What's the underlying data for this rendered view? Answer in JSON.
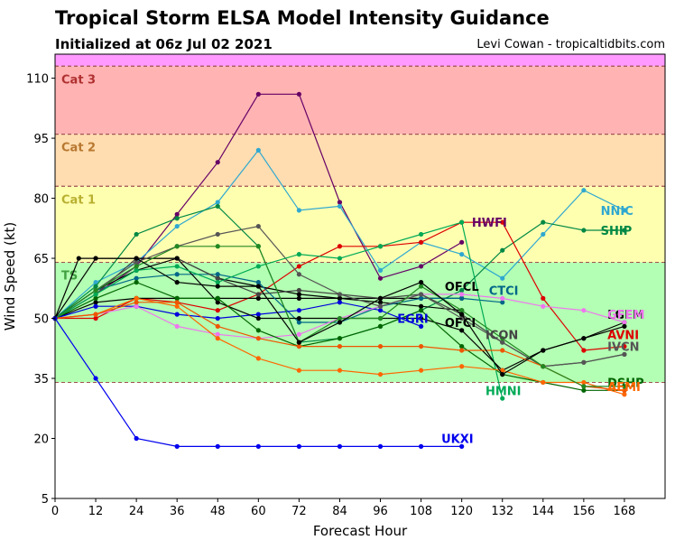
{
  "chart_data": {
    "type": "line",
    "title": "Tropical Storm ELSA Model Intensity Guidance",
    "subtitle": "Initialized at 06z Jul 02 2021",
    "credit": "Levi Cowan - tropicaltidbits.com",
    "xlabel": "Forecast Hour",
    "ylabel": "Wind Speed (kt)",
    "xlim": [
      0,
      180
    ],
    "ylim": [
      5,
      116
    ],
    "xticks": [
      0,
      12,
      24,
      36,
      48,
      60,
      72,
      84,
      96,
      108,
      120,
      132,
      144,
      156,
      168
    ],
    "yticks": [
      5,
      20,
      35,
      50,
      65,
      80,
      95,
      110
    ],
    "grid": false,
    "bands": [
      {
        "label": "",
        "from": 113,
        "to": 116,
        "color": "#ff99ff"
      },
      {
        "label": "Cat 3",
        "from": 96,
        "to": 113,
        "color": "#ffb3b3",
        "label_color": "#b03030"
      },
      {
        "label": "Cat 2",
        "from": 83,
        "to": 96,
        "color": "#ffddb0",
        "label_color": "#b87830"
      },
      {
        "label": "Cat 1",
        "from": 64,
        "to": 83,
        "color": "#ffffb0",
        "label_color": "#b8b030"
      },
      {
        "label": "TS",
        "from": 34,
        "to": 64,
        "color": "#b3ffb3",
        "label_color": "#40a040"
      }
    ],
    "series": [
      {
        "name": "HWFI",
        "color": "#660066",
        "x": [
          0,
          12,
          24,
          36,
          48,
          60,
          72,
          84,
          96,
          108,
          120
        ],
        "values": [
          50,
          56,
          63,
          76,
          89,
          106,
          106,
          79,
          60,
          63,
          69
        ],
        "label_x": 123,
        "label_y": 74
      },
      {
        "name": "NNIC",
        "color": "#30a8d0",
        "x": [
          0,
          12,
          24,
          36,
          48,
          60,
          72,
          84,
          96,
          108,
          120,
          132,
          144,
          156,
          168
        ],
        "values": [
          50,
          59,
          64,
          73,
          79,
          92,
          77,
          78,
          62,
          69,
          66,
          60,
          71,
          82,
          77
        ],
        "label_x": 161,
        "label_y": 77
      },
      {
        "name": "SHIP",
        "color": "#008844",
        "x": [
          0,
          12,
          24,
          36,
          48,
          60,
          72,
          84,
          96,
          108,
          120,
          132,
          144,
          156,
          168
        ],
        "values": [
          50,
          58,
          71,
          75,
          78,
          68,
          44,
          45,
          48,
          52,
          57,
          67,
          74,
          72,
          72
        ],
        "label_x": 161,
        "label_y": 72
      },
      {
        "name": "AVNI",
        "color": "#dd0000",
        "x": [
          0,
          12,
          24,
          36,
          48,
          60,
          72,
          84,
          96,
          108,
          120,
          132,
          144,
          156,
          168
        ],
        "values": [
          50,
          50,
          55,
          54,
          52,
          56,
          63,
          68,
          68,
          69,
          74,
          74,
          55,
          42,
          43
        ],
        "label_x": 163,
        "label_y": 46
      },
      {
        "name": "OFCL",
        "color": "#000000",
        "x": [
          0,
          12,
          24,
          36,
          48,
          60,
          72,
          84,
          96,
          108,
          120
        ],
        "values": [
          50,
          54,
          55,
          55,
          55,
          55,
          55,
          55,
          55,
          55,
          55
        ],
        "label_x": 115,
        "label_y": 58
      },
      {
        "name": "OFCI",
        "color": "#000000",
        "x": [
          0,
          12,
          24,
          36,
          48,
          60,
          72,
          84,
          96,
          108,
          120
        ],
        "values": [
          50,
          57,
          62,
          65,
          60,
          58,
          56,
          55,
          54,
          53,
          52
        ],
        "label_x": 115,
        "label_y": 49
      },
      {
        "name": "CTCI",
        "color": "#006688",
        "x": [
          0,
          12,
          24,
          36,
          48,
          60,
          72,
          84,
          96,
          108,
          120,
          132
        ],
        "values": [
          50,
          57,
          60,
          61,
          61,
          59,
          49,
          49,
          53,
          55,
          55,
          54
        ],
        "label_x": 128,
        "label_y": 57
      },
      {
        "name": "EGRI",
        "color": "#0000dd",
        "x": [
          0,
          12,
          24,
          36,
          48,
          60,
          72,
          84,
          96,
          108
        ],
        "values": [
          50,
          53,
          53,
          51,
          50,
          51,
          52,
          54,
          52,
          48
        ],
        "label_x": 101,
        "label_y": 50
      },
      {
        "name": "ICON",
        "color": "#444444",
        "x": [
          0,
          12,
          24,
          36,
          48,
          60,
          72,
          84,
          96,
          108,
          120,
          132,
          144,
          156,
          168
        ],
        "values": [
          50,
          56,
          65,
          65,
          60,
          56,
          57,
          56,
          55,
          56,
          51,
          44,
          38,
          39,
          41
        ],
        "label_x": 127,
        "label_y": 46
      },
      {
        "name": "LGEM",
        "color": "#000000",
        "x": [
          0,
          12,
          24,
          36,
          48,
          60,
          72,
          84,
          96,
          108,
          120,
          132,
          144,
          156,
          168
        ],
        "values": [
          50,
          65,
          65,
          65,
          54,
          50,
          50,
          50,
          50,
          50,
          47,
          37,
          42,
          45,
          49
        ],
        "label_x": 163,
        "label_y": 51
      },
      {
        "name": "GFEM",
        "color": "#ee77ee",
        "x": [
          0,
          12,
          24,
          36,
          48,
          60,
          72,
          84,
          96,
          108,
          120,
          132,
          144,
          156,
          168
        ],
        "values": [
          50,
          51,
          53,
          48,
          46,
          45,
          46,
          50,
          53,
          56,
          56,
          55,
          53,
          52,
          49
        ],
        "label_x": 163,
        "label_y": 51
      },
      {
        "name": "IVCN",
        "color": "#555555",
        "x": [
          0,
          12,
          24,
          36,
          48,
          60,
          72,
          84,
          96,
          108,
          120,
          132,
          144,
          156,
          168
        ],
        "values": [
          50,
          57,
          64,
          68,
          71,
          73,
          61,
          56,
          53,
          56,
          50,
          44,
          38,
          39,
          41
        ],
        "label_x": 163,
        "label_y": 43
      },
      {
        "name": "DSHP",
        "color": "#006600",
        "x": [
          0,
          12,
          24,
          36,
          48,
          60,
          72,
          84,
          96,
          108,
          120,
          132,
          144,
          156,
          168
        ],
        "values": [
          50,
          55,
          59,
          55,
          55,
          47,
          43,
          45,
          48,
          52,
          43,
          36,
          34,
          32,
          32
        ],
        "label_x": 163,
        "label_y": 34
      },
      {
        "name": "HMNI",
        "color": "#00aa55",
        "x": [
          0,
          12,
          24,
          36,
          48,
          60,
          72,
          84,
          96,
          108,
          120,
          132
        ],
        "values": [
          50,
          56,
          62,
          63,
          59,
          63,
          66,
          65,
          68,
          71,
          74,
          30
        ],
        "label_x": 127,
        "label_y": 32
      },
      {
        "name": "AEMI",
        "color": "#ff6600",
        "x": [
          0,
          12,
          24,
          36,
          48,
          60,
          72,
          84,
          96,
          108,
          120,
          132,
          144,
          156,
          168
        ],
        "values": [
          50,
          51,
          55,
          53,
          45,
          40,
          37,
          37,
          36,
          37,
          38,
          37,
          34,
          34,
          31
        ],
        "label_x": 163,
        "label_y": 33
      },
      {
        "name": "",
        "color": "#ee5500",
        "x": [
          0,
          12,
          24,
          36,
          48,
          60,
          72,
          84,
          96,
          108,
          120,
          132,
          144,
          156,
          168
        ],
        "values": [
          50,
          51,
          54,
          54,
          48,
          45,
          43,
          43,
          43,
          43,
          42,
          42,
          38,
          33,
          32
        ]
      },
      {
        "name": "",
        "color": "#228822",
        "x": [
          0,
          12,
          24,
          36,
          48,
          60,
          72,
          84,
          96,
          108,
          120,
          132,
          144,
          156,
          168
        ],
        "values": [
          50,
          57,
          63,
          68,
          68,
          68,
          44,
          50,
          50,
          58,
          52,
          45,
          38,
          33,
          33
        ]
      },
      {
        "name": "",
        "color": "#000000",
        "x": [
          0,
          7,
          12,
          24,
          36,
          48,
          60,
          72,
          84,
          96,
          108,
          120,
          132,
          144,
          156,
          168
        ],
        "values": [
          50,
          65,
          65,
          65,
          59,
          58,
          58,
          44,
          49,
          55,
          59,
          51,
          36,
          42,
          45,
          48
        ]
      },
      {
        "name": "UKXI",
        "color": "#0000ee",
        "x": [
          0,
          12,
          24,
          36,
          48,
          60,
          72,
          84,
          96,
          108,
          120
        ],
        "values": [
          50,
          35,
          20,
          18,
          18,
          18,
          18,
          18,
          18,
          18,
          18
        ],
        "label_x": 114,
        "label_y": 20
      }
    ]
  }
}
